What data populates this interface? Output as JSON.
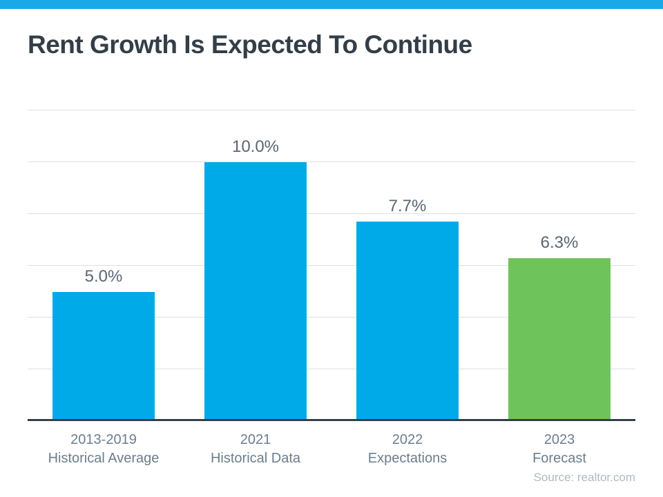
{
  "page": {
    "accent_bar_color": "#1AA9E8"
  },
  "header": {
    "title": "Rent Growth Is Expected To Continue",
    "title_color": "#333E48"
  },
  "chart_data": {
    "type": "bar",
    "title": "Rent Growth Is Expected To Continue",
    "categories": [
      "2013-2019\nHistorical Average",
      "2021\nHistorical Data",
      "2022\nExpectations",
      "2023\nForecast"
    ],
    "values": [
      5.0,
      10.0,
      7.7,
      6.3
    ],
    "value_labels": [
      "5.0%",
      "10.0%",
      "7.7%",
      "6.3%"
    ],
    "bar_colors": [
      "#00AAE8",
      "#00AAE8",
      "#00AAE8",
      "#6FC35B"
    ],
    "xlabel": "",
    "ylabel": "",
    "ylim": [
      0,
      12
    ],
    "gridline_step": 2,
    "grid": true,
    "legend": false,
    "axis_line_color": "#333E48",
    "gridline_color": "#DCDFE2",
    "value_label_color": "#5A6672",
    "category_label_color": "#6B7D8E"
  },
  "footer": {
    "source": "Source: realtor.com"
  }
}
